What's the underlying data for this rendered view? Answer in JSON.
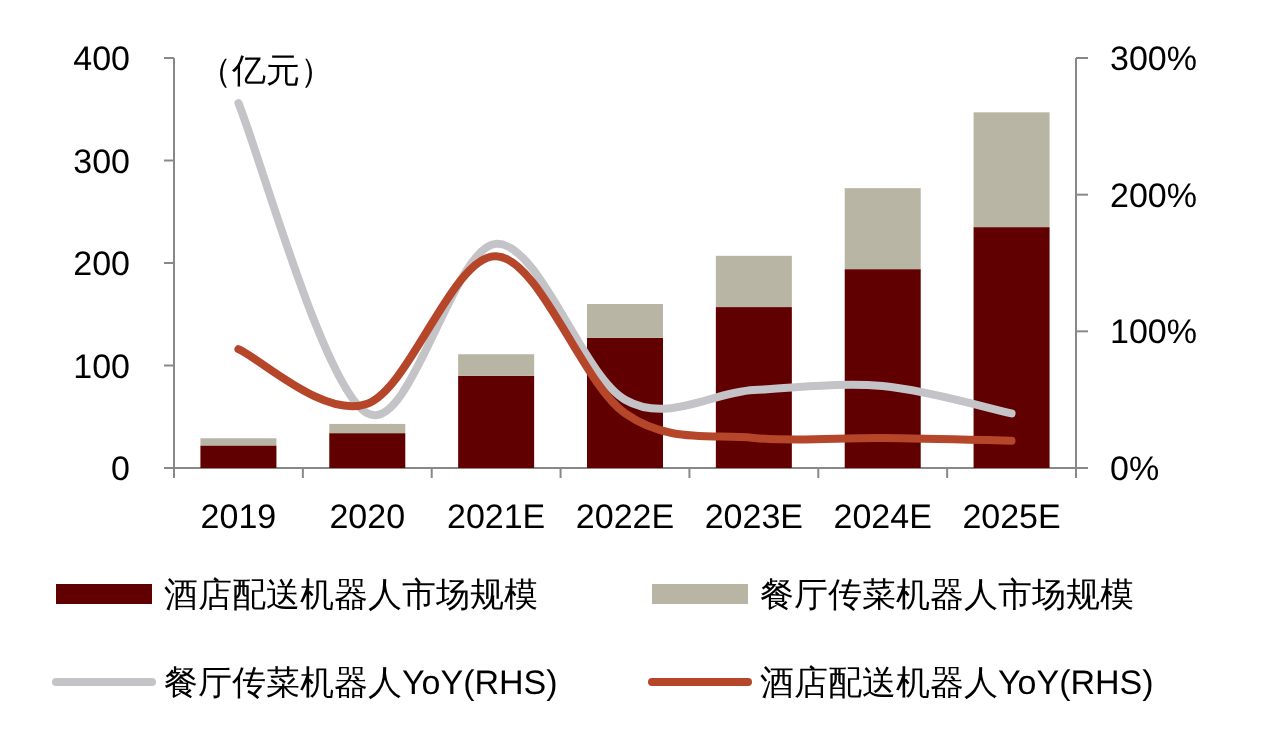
{
  "chart_data": {
    "type": "bar",
    "stacked": true,
    "ylabel": "（亿元）",
    "categories": [
      "2019",
      "2020",
      "2021E",
      "2022E",
      "2023E",
      "2024E",
      "2025E"
    ],
    "series": [
      {
        "name": "酒店配送机器人市场规模",
        "color": "#600000",
        "values": [
          22,
          34,
          90,
          127,
          157,
          194,
          235
        ]
      },
      {
        "name": "餐厅传菜机器人市场规模",
        "color": "#b8b5a5",
        "values": [
          7,
          9,
          21,
          33,
          50,
          79,
          112
        ]
      },
      {
        "name": "餐厅传菜机器人YoY(RHS)",
        "type": "line",
        "axis": "y2",
        "color": "#c4c4c8",
        "values": [
          267,
          40,
          164,
          50,
          57,
          60,
          40
        ]
      },
      {
        "name": "酒店配送机器人YoY(RHS)",
        "type": "line",
        "axis": "y2",
        "color": "#b5462a",
        "values": [
          87,
          47,
          155,
          40,
          22,
          22,
          20
        ]
      }
    ],
    "ylim": [
      0,
      400
    ],
    "yticks": [
      0,
      100,
      200,
      300,
      400
    ],
    "y2lim": [
      0,
      300
    ],
    "y2ticks": [
      {
        "value": 0,
        "label": "0%"
      },
      {
        "value": 100,
        "label": "100%"
      },
      {
        "value": 200,
        "label": "200%"
      },
      {
        "value": 300,
        "label": "300%"
      }
    ],
    "legend": "bottom",
    "grid": false
  }
}
